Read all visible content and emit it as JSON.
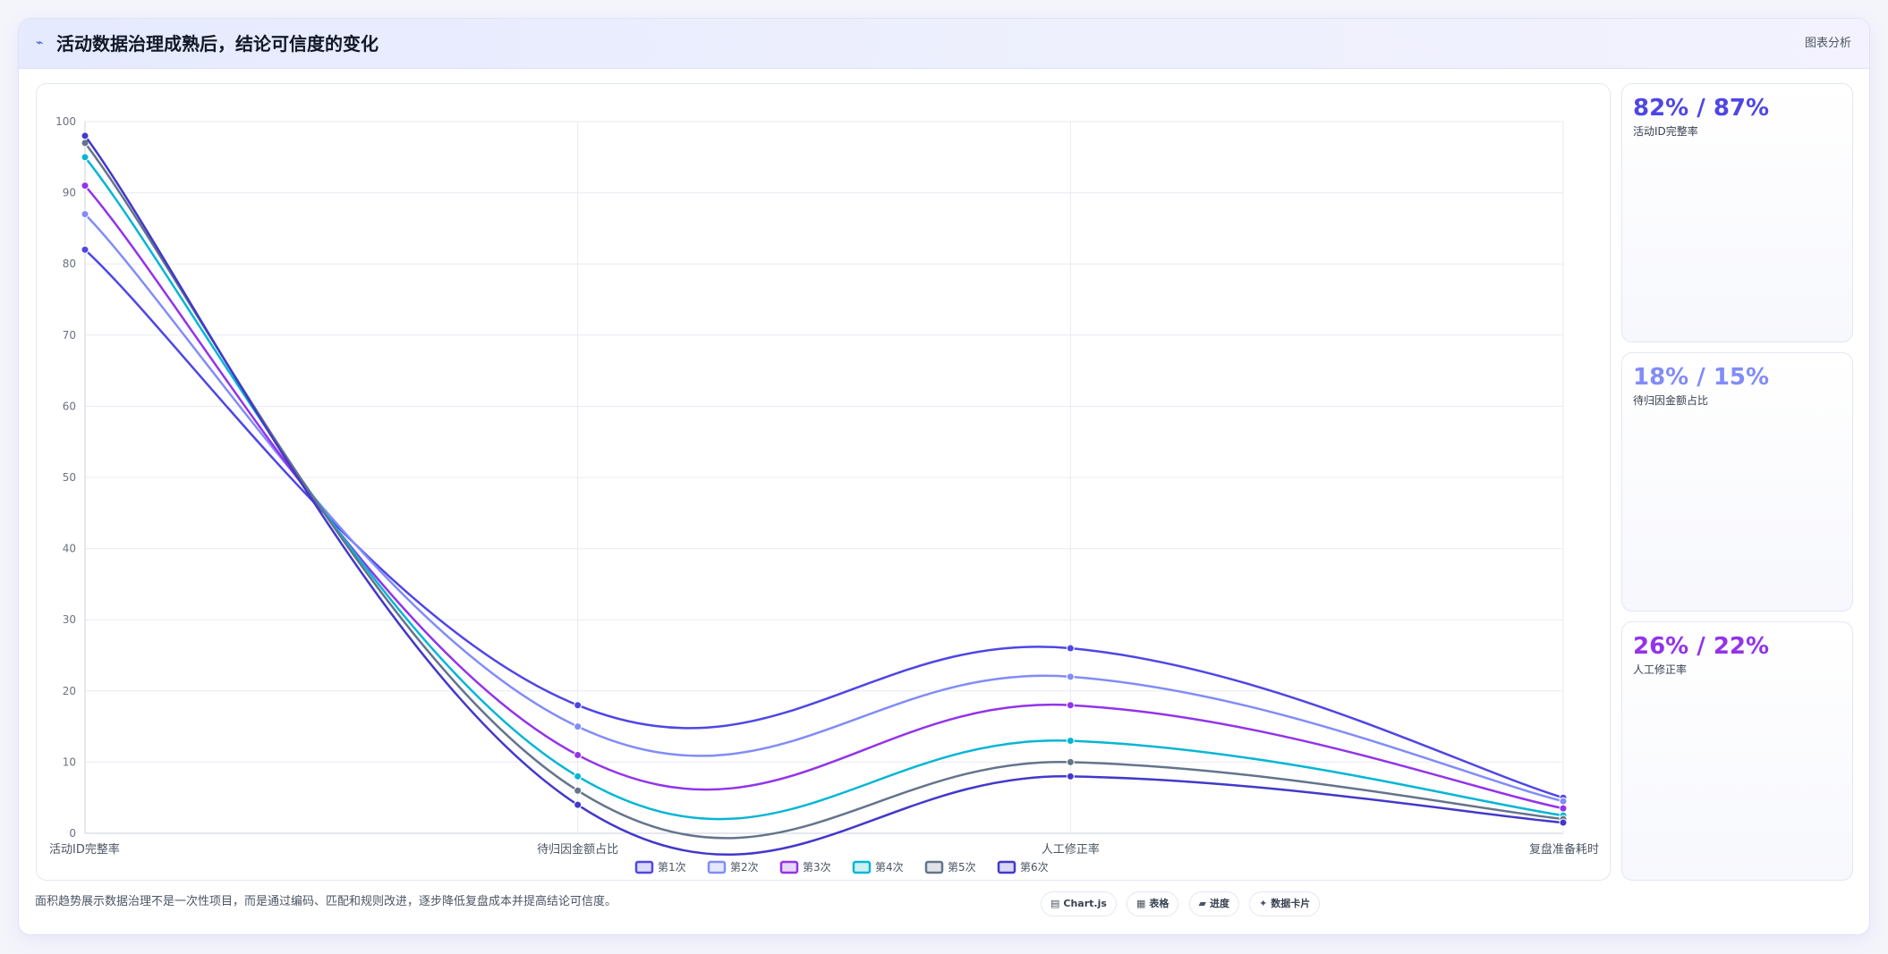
{
  "header": {
    "icon": "trend-line-icon",
    "title": "活动数据治理成熟后，结论可信度的变化",
    "right_label": "图表分析"
  },
  "chart_data": {
    "type": "line",
    "categories": [
      "活动ID完整率",
      "待归因金额占比",
      "人工修正率",
      "复盘准备耗时"
    ],
    "ylim": [
      0,
      100
    ],
    "yticks": [
      0,
      10,
      20,
      30,
      40,
      50,
      60,
      70,
      80,
      90,
      100
    ],
    "grid": true,
    "legend_position": "bottom",
    "series": [
      {
        "name": "第1次",
        "color": "#4f46e5",
        "values": [
          82,
          18,
          26,
          5
        ]
      },
      {
        "name": "第2次",
        "color": "#818cf8",
        "values": [
          87,
          15,
          22,
          4.5
        ]
      },
      {
        "name": "第3次",
        "color": "#9333ea",
        "values": [
          91,
          11,
          18,
          3.5
        ]
      },
      {
        "name": "第4次",
        "color": "#06b6d4",
        "values": [
          95,
          8,
          13,
          2.5
        ]
      },
      {
        "name": "第5次",
        "color": "#64748b",
        "values": [
          97,
          6,
          10,
          2
        ]
      },
      {
        "name": "第6次",
        "color": "#4338ca",
        "values": [
          98,
          4,
          8,
          1.5
        ]
      }
    ]
  },
  "stats": [
    {
      "value": "82% / 87%",
      "label": "活动ID完整率",
      "color": "#4f46e5"
    },
    {
      "value": "18% / 15%",
      "label": "待归因金额占比",
      "color": "#818cf8"
    },
    {
      "value": "26% / 22%",
      "label": "人工修正率",
      "color": "#9333ea"
    }
  ],
  "footnote": "面积趋势展示数据治理不是一次性项目，而是通过编码、匹配和规则改进，逐步降低复盘成本并提高结论可信度。",
  "pills": [
    {
      "icon": "chart-icon",
      "glyph": "▤",
      "label": "Chart.js"
    },
    {
      "icon": "table-icon",
      "glyph": "▦",
      "label": "表格"
    },
    {
      "icon": "progress-icon",
      "glyph": "▰",
      "label": "进度"
    },
    {
      "icon": "data-card-icon",
      "glyph": "✦",
      "label": "数据卡片"
    }
  ]
}
